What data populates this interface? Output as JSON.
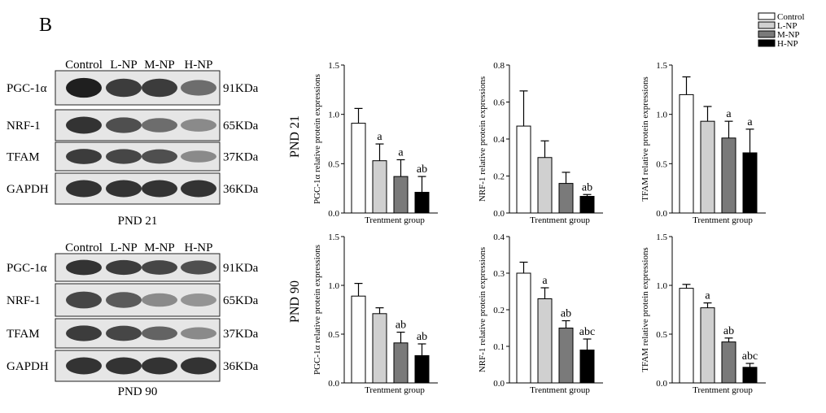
{
  "panel_label": "B",
  "legend": [
    {
      "label": "Control",
      "color": "#ffffff"
    },
    {
      "label": "L-NP",
      "color": "#d0d0d0"
    },
    {
      "label": "M-NP",
      "color": "#7a7a7a"
    },
    {
      "label": "H-NP",
      "color": "#000000"
    }
  ],
  "blots": [
    {
      "caption": "PND 21",
      "lanes": [
        "Control",
        "L-NP",
        "M-NP",
        "H-NP"
      ],
      "rows": [
        {
          "protein": "PGC-1α",
          "size": "91KDa",
          "intensity": [
            1.0,
            0.85,
            0.85,
            0.6
          ]
        },
        {
          "protein": "NRF-1",
          "size": "65KDa",
          "intensity": [
            0.9,
            0.75,
            0.6,
            0.45
          ]
        },
        {
          "protein": "TFAM",
          "size": "37KDa",
          "intensity": [
            0.85,
            0.8,
            0.75,
            0.45
          ]
        },
        {
          "protein": "GAPDH",
          "size": "36KDa",
          "intensity": [
            0.9,
            0.9,
            0.9,
            0.9
          ]
        }
      ]
    },
    {
      "caption": "PND 90",
      "lanes": [
        "Control",
        "L-NP",
        "M-NP",
        "H-NP"
      ],
      "rows": [
        {
          "protein": "PGC-1α",
          "size": "91KDa",
          "intensity": [
            0.9,
            0.85,
            0.8,
            0.75
          ]
        },
        {
          "protein": "NRF-1",
          "size": "65KDa",
          "intensity": [
            0.8,
            0.7,
            0.45,
            0.4
          ]
        },
        {
          "protein": "TFAM",
          "size": "37KDa",
          "intensity": [
            0.85,
            0.8,
            0.65,
            0.45
          ]
        },
        {
          "protein": "GAPDH",
          "size": "36KDa",
          "intensity": [
            0.9,
            0.9,
            0.9,
            0.9
          ]
        }
      ]
    }
  ],
  "row_labels": [
    "PND 21",
    "PND 90"
  ],
  "chart_data": [
    {
      "type": "bar",
      "row": "PND 21",
      "ylabel": "PGC-1α relative protein expressions",
      "xlabel": "Trentment group",
      "categories": [
        "Control",
        "L-NP",
        "M-NP",
        "H-NP"
      ],
      "ylim": [
        0,
        1.5
      ],
      "yticks": [
        "0.0",
        "0.5",
        "1.0",
        "1.5"
      ],
      "tick_values": [
        0,
        0.5,
        1.0,
        1.5
      ],
      "values": [
        0.91,
        0.53,
        0.37,
        0.21
      ],
      "errors": [
        0.15,
        0.17,
        0.17,
        0.16
      ],
      "annotations": [
        "",
        "a",
        "a",
        "ab"
      ]
    },
    {
      "type": "bar",
      "row": "PND 21",
      "ylabel": "NRF-1 relative protein expressions",
      "xlabel": "Trentment group",
      "categories": [
        "Control",
        "L-NP",
        "M-NP",
        "H-NP"
      ],
      "ylim": [
        0,
        0.8
      ],
      "yticks": [
        "0.0",
        "0.2",
        "0.4",
        "0.6",
        "0.8"
      ],
      "tick_values": [
        0,
        0.2,
        0.4,
        0.6,
        0.8
      ],
      "values": [
        0.47,
        0.3,
        0.16,
        0.09
      ],
      "errors": [
        0.19,
        0.09,
        0.06,
        0.01
      ],
      "annotations": [
        "",
        "",
        "",
        "ab"
      ]
    },
    {
      "type": "bar",
      "row": "PND 21",
      "ylabel": "TFAM relative protein expressions",
      "xlabel": "Trentment group",
      "categories": [
        "Control",
        "L-NP",
        "M-NP",
        "H-NP"
      ],
      "ylim": [
        0,
        1.5
      ],
      "yticks": [
        "0.0",
        "0.5",
        "1.0",
        "1.5"
      ],
      "tick_values": [
        0,
        0.5,
        1.0,
        1.5
      ],
      "values": [
        1.2,
        0.93,
        0.76,
        0.61
      ],
      "errors": [
        0.18,
        0.15,
        0.17,
        0.24
      ],
      "annotations": [
        "",
        "",
        "a",
        "a"
      ]
    },
    {
      "type": "bar",
      "row": "PND 90",
      "ylabel": "PGC-1α relative protein expressions",
      "xlabel": "Trentment group",
      "categories": [
        "Control",
        "L-NP",
        "M-NP",
        "H-NP"
      ],
      "ylim": [
        0,
        1.5
      ],
      "yticks": [
        "0.0",
        "0.5",
        "1.0",
        "1.5"
      ],
      "tick_values": [
        0,
        0.5,
        1.0,
        1.5
      ],
      "values": [
        0.89,
        0.71,
        0.41,
        0.28
      ],
      "errors": [
        0.13,
        0.06,
        0.11,
        0.12
      ],
      "annotations": [
        "",
        "",
        "ab",
        "ab"
      ]
    },
    {
      "type": "bar",
      "row": "PND 90",
      "ylabel": "NRF-1 relative protein expressions",
      "xlabel": "Trentment group",
      "categories": [
        "Control",
        "L-NP",
        "M-NP",
        "H-NP"
      ],
      "ylim": [
        0,
        0.4
      ],
      "yticks": [
        "0.0",
        "0.1",
        "0.2",
        "0.3",
        "0.4"
      ],
      "tick_values": [
        0,
        0.1,
        0.2,
        0.3,
        0.4
      ],
      "values": [
        0.3,
        0.23,
        0.15,
        0.09
      ],
      "errors": [
        0.03,
        0.03,
        0.02,
        0.03
      ],
      "annotations": [
        "",
        "a",
        "ab",
        "abc"
      ]
    },
    {
      "type": "bar",
      "row": "PND 90",
      "ylabel": "TFAM relative protein expressions",
      "xlabel": "Trentment group",
      "categories": [
        "Control",
        "L-NP",
        "M-NP",
        "H-NP"
      ],
      "ylim": [
        0,
        1.5
      ],
      "yticks": [
        "0.0",
        "0.5",
        "1.0",
        "1.5"
      ],
      "tick_values": [
        0,
        0.5,
        1.0,
        1.5
      ],
      "values": [
        0.97,
        0.77,
        0.42,
        0.16
      ],
      "errors": [
        0.04,
        0.05,
        0.04,
        0.04
      ],
      "annotations": [
        "",
        "a",
        "ab",
        "abc"
      ]
    }
  ]
}
